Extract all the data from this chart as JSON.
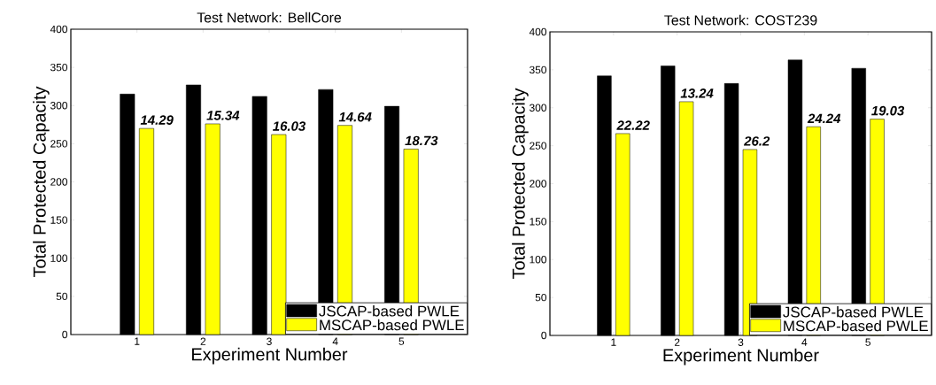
{
  "chart_data": [
    {
      "type": "bar",
      "title": "Test Network: BellCore",
      "xlabel": "Experiment Number",
      "ylabel": "Total Protected Capacity",
      "categories": [
        "1",
        "2",
        "3",
        "4",
        "5"
      ],
      "series": [
        {
          "name": "JSCAP-based PWLE",
          "color": "#000000",
          "values": [
            315,
            327,
            312,
            321,
            299
          ]
        },
        {
          "name": "MSCAP-based PWLE",
          "color": "#ffff00",
          "values": [
            270,
            276,
            262,
            274,
            243
          ]
        }
      ],
      "ylim": [
        0,
        400
      ],
      "yticks": [
        0,
        50,
        100,
        150,
        200,
        250,
        300,
        350,
        400
      ],
      "legend": "bottom right",
      "annotations": [
        {
          "text": "14.29",
          "x": "1",
          "y": 270
        },
        {
          "text": "15.34",
          "x": "2",
          "y": 276
        },
        {
          "text": "16.03",
          "x": "3",
          "y": 262
        },
        {
          "text": "14.64",
          "x": "4",
          "y": 274
        },
        {
          "text": "18.73",
          "x": "5",
          "y": 243
        }
      ]
    },
    {
      "type": "bar",
      "title": "Test Network: COST239",
      "xlabel": "Experiment Number",
      "ylabel": "Total Protected Capacity",
      "categories": [
        "1",
        "2",
        "3",
        "4",
        "5"
      ],
      "series": [
        {
          "name": "JSCAP-based PWLE",
          "color": "#000000",
          "values": [
            342,
            355,
            332,
            363,
            352
          ]
        },
        {
          "name": "MSCAP-based PWLE",
          "color": "#ffff00",
          "values": [
            266,
            308,
            245,
            275,
            285
          ]
        }
      ],
      "ylim": [
        0,
        400
      ],
      "yticks": [
        0,
        50,
        100,
        150,
        200,
        250,
        300,
        350,
        400
      ],
      "legend": "bottom right",
      "annotations": [
        {
          "text": "22.22",
          "x": "1",
          "y": 266
        },
        {
          "text": "13.24",
          "x": "2",
          "y": 308
        },
        {
          "text": "26.2",
          "x": "3",
          "y": 245
        },
        {
          "text": "24.24",
          "x": "4",
          "y": 275
        },
        {
          "text": "19.03",
          "x": "5",
          "y": 285
        }
      ]
    }
  ]
}
